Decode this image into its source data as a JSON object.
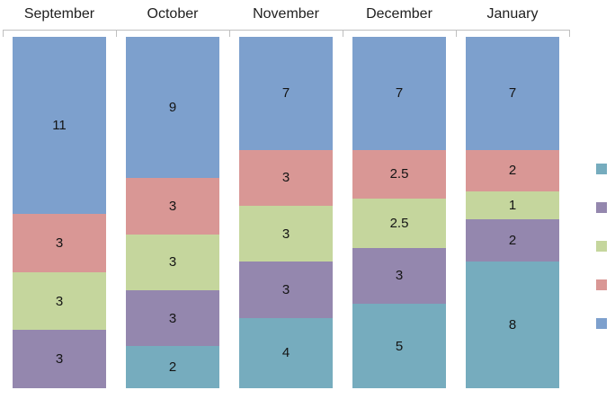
{
  "chart_data": {
    "type": "bar",
    "variant": "stacked-column",
    "title": "",
    "xlabel": "",
    "ylabel": "",
    "categories": [
      "September",
      "October",
      "November",
      "December",
      "January"
    ],
    "series": [
      {
        "name": "series-1-teal",
        "color": "#76ACBE",
        "values": [
          0,
          2,
          4,
          5,
          8
        ]
      },
      {
        "name": "series-2-purple",
        "color": "#9487AE",
        "values": [
          3,
          3,
          3,
          3,
          2
        ]
      },
      {
        "name": "series-3-green",
        "color": "#C5D69D",
        "values": [
          3,
          3,
          3,
          2.5,
          1
        ]
      },
      {
        "name": "series-4-red",
        "color": "#D99795",
        "values": [
          3,
          3,
          3,
          2.5,
          2
        ]
      },
      {
        "name": "series-5-blue",
        "color": "#7DA0CD",
        "values": [
          11,
          9,
          7,
          7,
          7
        ]
      }
    ],
    "stack_order_bottom_to_top": [
      "series-1-teal",
      "series-2-purple",
      "series-3-green",
      "series-4-red",
      "series-5-blue"
    ],
    "total_per_category": 20,
    "data_labels_visible": true,
    "data_labels": {
      "September": [
        11,
        3,
        3,
        3
      ],
      "October": [
        9,
        3,
        3,
        3,
        2
      ],
      "November": [
        7,
        3,
        3,
        3,
        4
      ],
      "December": [
        7,
        2.5,
        2.5,
        3,
        5
      ],
      "January": [
        7,
        2,
        1,
        2,
        8
      ]
    },
    "legend": {
      "position": "right",
      "labels_visible": false,
      "marker_colors_top_to_bottom": [
        "#76ACBE",
        "#9487AE",
        "#C5D69D",
        "#D99795",
        "#7DA0CD"
      ]
    },
    "axis": {
      "category_axis_position": "top",
      "line_color": "#BFBFBF",
      "tick_count": 6,
      "value_axis_visible": false,
      "gridlines": false
    }
  }
}
